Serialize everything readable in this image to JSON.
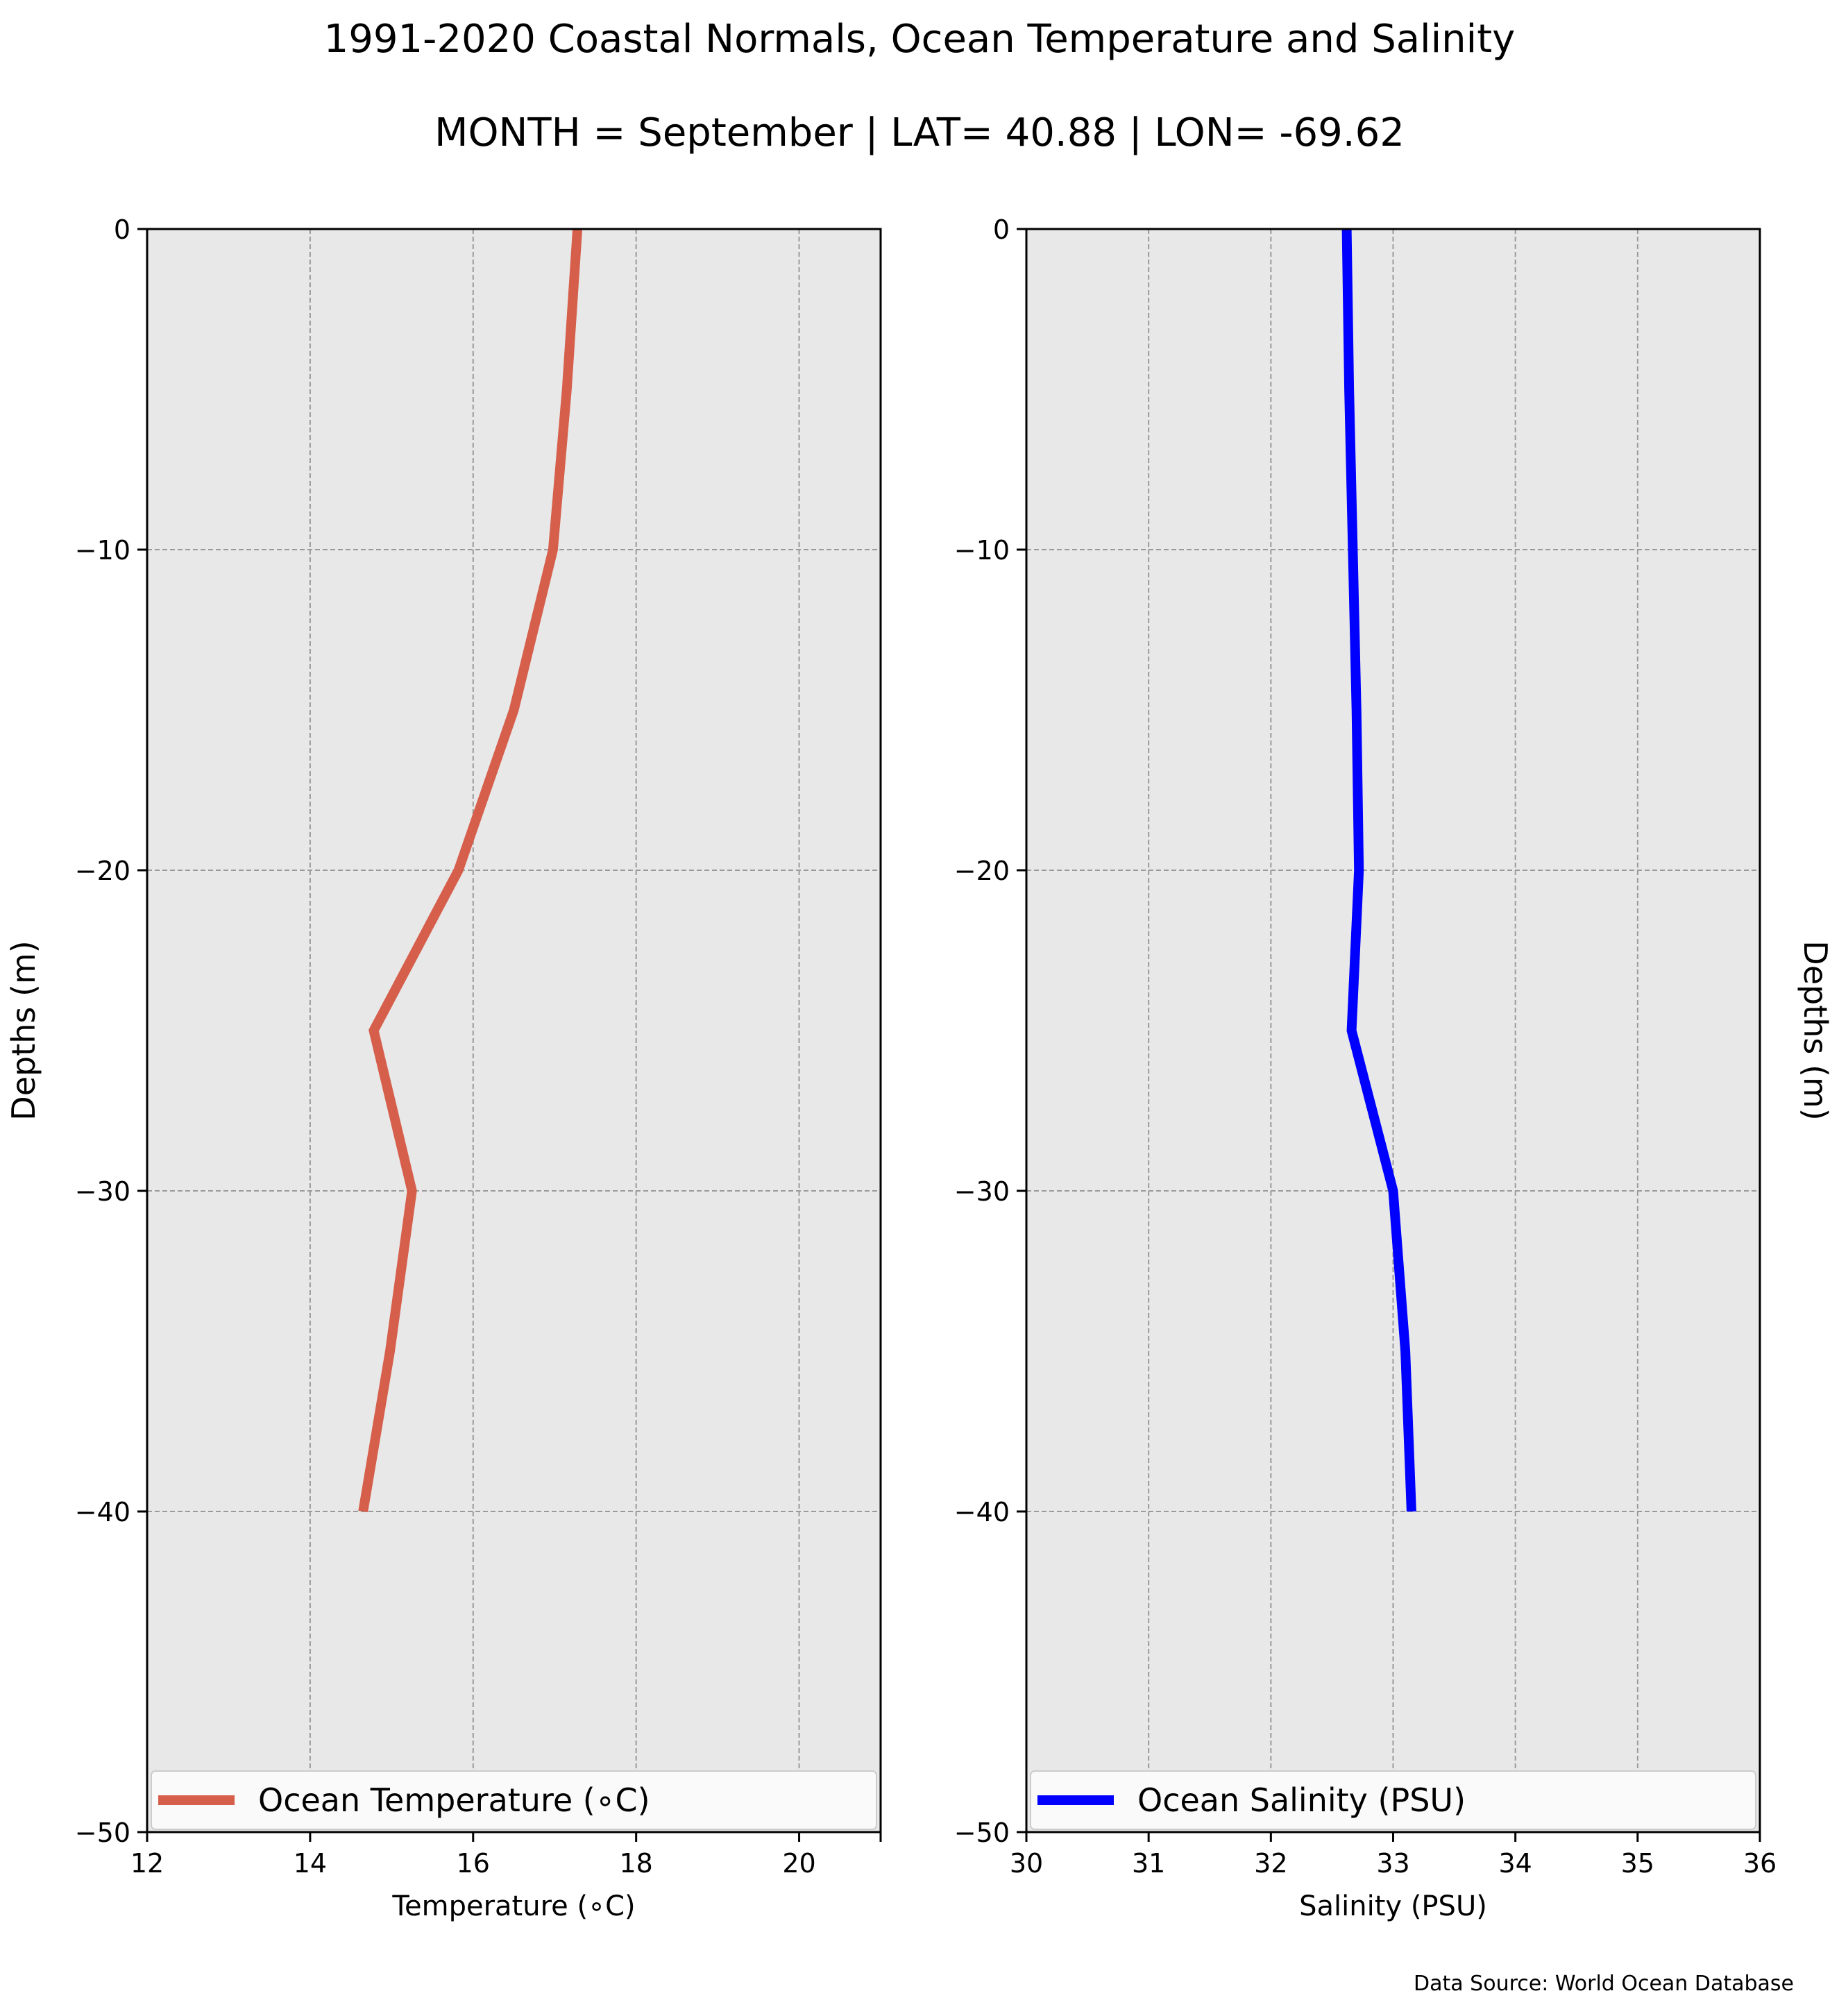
{
  "title": "1991-2020 Coastal Normals, Ocean Temperature and Salinity",
  "subtitle": "MONTH = September | LAT= 40.88 | LON= -69.62",
  "source": "Data Source: World Ocean Database",
  "chart_data": [
    {
      "type": "line",
      "xlabel": "Temperature (∘C)",
      "ylabel": "Depths (m)",
      "xlim": [
        12,
        21
      ],
      "ylim": [
        -50,
        0
      ],
      "xticks": [
        "12",
        "14",
        "16",
        "18",
        "20"
      ],
      "xtick_values": [
        12,
        14,
        16,
        18,
        20
      ],
      "yticks": [
        "0",
        "−10",
        "−20",
        "−30",
        "−40",
        "−50"
      ],
      "ytick_values": [
        0,
        -10,
        -20,
        -30,
        -40,
        -50
      ],
      "grid": true,
      "legend_position": "bottom",
      "series": [
        {
          "name": "Ocean Temperature (∘C)",
          "color": "#d65f4c",
          "x": [
            17.28,
            17.15,
            16.98,
            16.5,
            15.82,
            14.78,
            15.25,
            14.98,
            14.65
          ],
          "y": [
            0,
            -5,
            -10,
            -15,
            -20,
            -25,
            -30,
            -35,
            -40
          ]
        }
      ]
    },
    {
      "type": "line",
      "xlabel": "Salinity (PSU)",
      "ylabel": "Depths (m)",
      "xlim": [
        30,
        36
      ],
      "ylim": [
        -50,
        0
      ],
      "xticks": [
        "30",
        "31",
        "32",
        "33",
        "34",
        "35",
        "36"
      ],
      "xtick_values": [
        30,
        31,
        32,
        33,
        34,
        35,
        36
      ],
      "yticks": [
        "0",
        "−10",
        "−20",
        "−30",
        "−40",
        "−50"
      ],
      "ytick_values": [
        0,
        -10,
        -20,
        -30,
        -40,
        -50
      ],
      "grid": true,
      "legend_position": "bottom",
      "series": [
        {
          "name": "Ocean Salinity (PSU)",
          "color": "#0000ff",
          "x": [
            32.62,
            32.64,
            32.67,
            32.7,
            32.72,
            32.66,
            33.0,
            33.1,
            33.15
          ],
          "y": [
            0,
            -5,
            -10,
            -15,
            -20,
            -25,
            -30,
            -35,
            -40
          ]
        }
      ]
    }
  ]
}
